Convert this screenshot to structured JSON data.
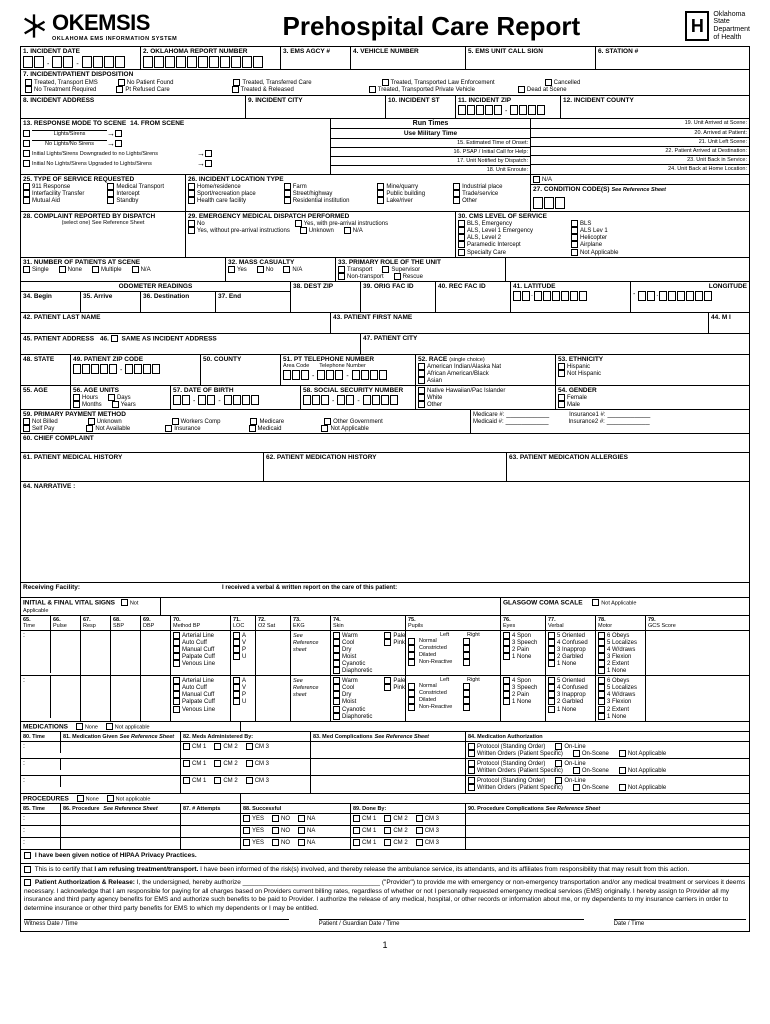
{
  "header": {
    "brand": "OKEMSIS",
    "brand_sub": "OKLAHOMA EMS INFORMATION SYSTEM",
    "title": "Prehospital Care Report",
    "right_org": "Oklahoma\nState\nDepartment\nof Health"
  },
  "fields": {
    "f1": "1. INCIDENT DATE",
    "f2": "2. OKLAHOMA REPORT NUMBER",
    "f3": "3. EMS AGCY #",
    "f4": "4. VEHICLE NUMBER",
    "f5": "5. EMS UNIT CALL SIGN",
    "f6": "6. STATION #",
    "f7": "7. INCIDENT/PATIENT DISPOSITION",
    "f8": "8. INCIDENT ADDRESS",
    "f9": "9. INCIDENT CITY",
    "f10": "10. INCIDENT ST",
    "f11": "11. INCIDENT ZIP",
    "f12": "12. INCIDENT COUNTY",
    "f13": "13. RESPONSE MODE TO SCENE",
    "f14": "14. FROM SCENE",
    "runtimes": "Run Times",
    "usemil": "Use Military Time",
    "rt15": "15.     Estimated Time of Onset:",
    "rt16": "16.     PSAP / Initial Call for Help:",
    "rt17": "17.     Unit Notified by Dispatch:",
    "rt18": "18.     Unit Enroute:",
    "rt19": "19.     Unit Arrived at Scene:",
    "rt20": "20.     Arrived at Patient:",
    "rt21": "21.     Unit Left Scene:",
    "rt22": "22.     Patient Arrived at Destination:",
    "rt23": "23.     Unit Back in Service:",
    "rt24": "24.     Unit Back at Home Location:",
    "f25": "25. TYPE OF SERVICE REQUESTED",
    "f26": "26. INCIDENT LOCATION TYPE",
    "f27": "27. CONDITION CODE(S)",
    "f27s": "See Reference Sheet",
    "f28": "28. COMPLAINT REPORTED BY DISPATCH",
    "f28s": "(select one) See Reference Sheet",
    "f29": "29. EMERGENCY MEDICAL DISPATCH PERFORMED",
    "f30": "30. CMS LEVEL OF SERVICE",
    "f31": "31. NUMBER OF PATIENTS AT SCENE",
    "f32": "32. MASS CASUALTY",
    "f33": "33. PRIMARY ROLE OF THE UNIT",
    "odo": "ODOMETER READINGS",
    "f34": "34. Begin",
    "f35": "35. Arrive",
    "f36": "36. Destination",
    "f37": "37. End",
    "f38": "38. DEST ZIP",
    "f39": "39. ORIG FAC ID",
    "f40": "40. REC FAC ID",
    "f41": "41. LATITUDE",
    "flong": "LONGITUDE",
    "f42": "42. PATIENT LAST NAME",
    "f43": "43. PATIENT FIRST NAME",
    "f44": "44. M I",
    "f45": "45. PATIENT ADDRESS",
    "f46": "46. ☐ SAME AS INCIDENT ADDRESS",
    "f47": "47. PATIENT CITY",
    "f48": "48. STATE",
    "f49": "49. PATIENT ZIP CODE",
    "f50": "50. COUNTY",
    "f51": "51. PT TELEPHONE NUMBER",
    "f51a": "Area Code",
    "f51b": "Telephone Number",
    "f52": "52. RACE",
    "f52s": "(single choice)",
    "f53": "53. ETHNICITY",
    "f54": "54. GENDER",
    "f55": "55. AGE",
    "f56": "56. AGE UNITS",
    "f57": "57. DATE OF BIRTH",
    "f58": "58. SOCIAL SECURITY NUMBER",
    "f59": "59. PRIMARY PAYMENT METHOD",
    "f60": "60. CHIEF COMPLAINT",
    "f61": "61. PATIENT MEDICAL HISTORY",
    "f62": "62. PATIENT MEDICATION HISTORY",
    "f63": "63. PATIENT MEDICATION ALLERGIES",
    "f64": "64. NARRATIVE :",
    "recv": "Receiving Facility:",
    "recv2": "I received a verbal & written report on the care of this patient:",
    "vitals": "INITIAL & FINAL VITAL SIGNS",
    "na": "Not Applicable",
    "glasgow": "GLASGOW COMA SCALE",
    "v65": "65.\nTime",
    "v66": "66.\nPulse",
    "v67": "67.\nResp",
    "v68": "68.\nSBP",
    "v69": "69.\nDBP",
    "v70": "70.\nMethod BP",
    "v71": "71.\nLOC",
    "v72": "72.\nO2 Sat",
    "v73": "73.\nEKG",
    "v74": "74.\nSkin",
    "v75": "75.\nPupils",
    "v76": "76.\nEyes",
    "v77": "77.\nVerbal",
    "v78": "78.\nMotor",
    "v79": "79.\nGCS Score",
    "meds": "MEDICATIONS",
    "none": "None",
    "notapp": "Not applicable",
    "f80": "80. Time",
    "f81": "81. Medication Given",
    "f82": "82. Meds Administered By:",
    "f83": "83. Med Complications",
    "f84": "84. Medication Authorization",
    "proc": "PROCEDURES",
    "f85": "85. Time",
    "f86": "86. Procedure",
    "f87": "87. # Attempts",
    "f88": "88. Successful",
    "f89": "89. Done By:",
    "f90": "90. Procedure Complications",
    "hipaa": "I have been given notice of HIPAA Privacy Practices.",
    "refuse": "This is to certify that I am refusing treatment/transport. I have been informed of the risk(s) involved, and thereby release the ambulance service, its attendants, and its affiliates from responsibility that may result from this action.",
    "auth_head": "Patient Authorization & Release:",
    "auth_body": "I, the undersigned, hereby authorize ______________________________________ (\"Provider\") to provide me with emergency or non-emergency transportation and/or any medical treatment or services it deems necessary. I acknowledge that I am responsible for paying for all charges based on Providers current billing rates, regardless of whether or not I personally requested emergency medical services (EMS) originally. I hereby assign to Provider all my insurance and third party agency benefits for EMS and authorize such benefits to be paid to Provider. I authorize the release of any medical, hospital, or other records or information about me, or my dependents to my insurance carriers in order to determine insurance or other third party benefits for EMS to which my dependents or I may be entitled.",
    "sig1": "Witness                                          Date / Time",
    "sig2": "Patient / Guardian                                          Date / Time",
    "sig3": "           Date / Time",
    "medicare": "Medicare #:",
    "medicaid": "Medicaid #:",
    "ins1": "Insurance1 #:",
    "ins2": "Insurance2 #:",
    "seeRef": "See Reference Sheet"
  },
  "disp_opts": [
    "Treated, Transport EMS",
    "No Treatment Required",
    "No Patient Found",
    "Pt Refused Care",
    "Treated, Transferred Care",
    "Treated    & Released",
    "Treated, Transported Law Enforcement",
    "Treated, Transported Private Vehicle",
    "Cancelled",
    "Dead at Scene"
  ],
  "resp_modes": [
    "Lights/Sirens",
    "No Lights/No Sirens",
    "Initial Lights/Sirens Downgraded to no Lights/Sirens",
    "Initial No Lights/Sirens Upgraded to Lights/Sirens"
  ],
  "service_opts": [
    "911 Response",
    "Interfacility Transfer",
    "Mutual Aid",
    "Medical Transport",
    "Intercept",
    "Standby"
  ],
  "loc_opts": [
    "Home/residence",
    "Sport/recreation place",
    "Health care facility",
    "Farm",
    "Street/highway",
    "Residential institution",
    "Mine/quarry",
    "Public building",
    "Lake/river",
    "Industrial place",
    "Trade/service",
    "Other",
    "N/A"
  ],
  "emd_opts": [
    "No",
    "Yes, without pre-arrival instructions",
    "Yes, with pre-arrival instructions",
    "Unknown",
    "N/A"
  ],
  "cms_opts": [
    "BLS, Emergency",
    "ALS, Level 1 Emergency",
    "ALS, Level 2",
    "Paramedic Intercept",
    "Specialty Care",
    "BLS",
    "ALS Lev 1",
    "Helicopter",
    "Airplane",
    "Not Applicable"
  ],
  "pts_opts": [
    "Single",
    "None",
    "Multiple",
    "N/A"
  ],
  "mass_opts": [
    "Yes",
    "No",
    "N/A"
  ],
  "role_opts": [
    "Transport",
    "Non-transport",
    "Supervisor",
    "Rescue"
  ],
  "race_opts": [
    "American Indian/Alaska Nat",
    "African American/Black",
    "Asian",
    "Native Hawaiian/Pac Islander",
    "White",
    "Other"
  ],
  "eth_opts": [
    "Hispanic",
    "Not Hispanic"
  ],
  "gender_opts": [
    "Female",
    "Male"
  ],
  "age_unit_opts": [
    "Hours",
    "Months",
    "Days",
    "Years"
  ],
  "pay_opts": [
    "Not Billed",
    "Self Pay",
    "Unknown",
    "Not Available",
    "Workers Comp",
    "Insurance",
    "Medicare",
    "Medicaid",
    "Other Government",
    "Not Applicable"
  ],
  "bp_opts": [
    "Arterial Line",
    "Auto Cuff",
    "Manual Cuff",
    "Palpate Cuff",
    "Venous Line"
  ],
  "loc_opts2": [
    "A",
    "V",
    "P",
    "U"
  ],
  "skin_opts": [
    "Warm",
    "Cool",
    "Dry",
    "Moist",
    "Cyanotic",
    "Diaphoretic",
    "Pale",
    "Pink"
  ],
  "pupil_opts": [
    "Normal",
    "Constricted",
    "Dilated",
    "Non-Reactive"
  ],
  "pupil_lr": [
    "Left",
    "Right"
  ],
  "eyes_opts": [
    "4 Spon",
    "3 Speech",
    "2 Pain",
    "1 None"
  ],
  "verbal_opts": [
    "5 Oriented",
    "4 Confused",
    "3 Inapprop",
    "2 Garbled",
    "1 None"
  ],
  "motor_opts": [
    "6 Obeys",
    "5 Localizes",
    "4 W/draws",
    "3 Flexion",
    "2 Extent",
    "1 None"
  ],
  "cm_opts": [
    "CM 1",
    "CM 2",
    "CM 3"
  ],
  "yn_opts": [
    "YES",
    "NO",
    "NA"
  ],
  "auth_opts": [
    "Protocol (Standing Order)",
    "Written Orders (Patient Specific)",
    "On-Line",
    "On-Scene",
    "Not Applicable"
  ]
}
